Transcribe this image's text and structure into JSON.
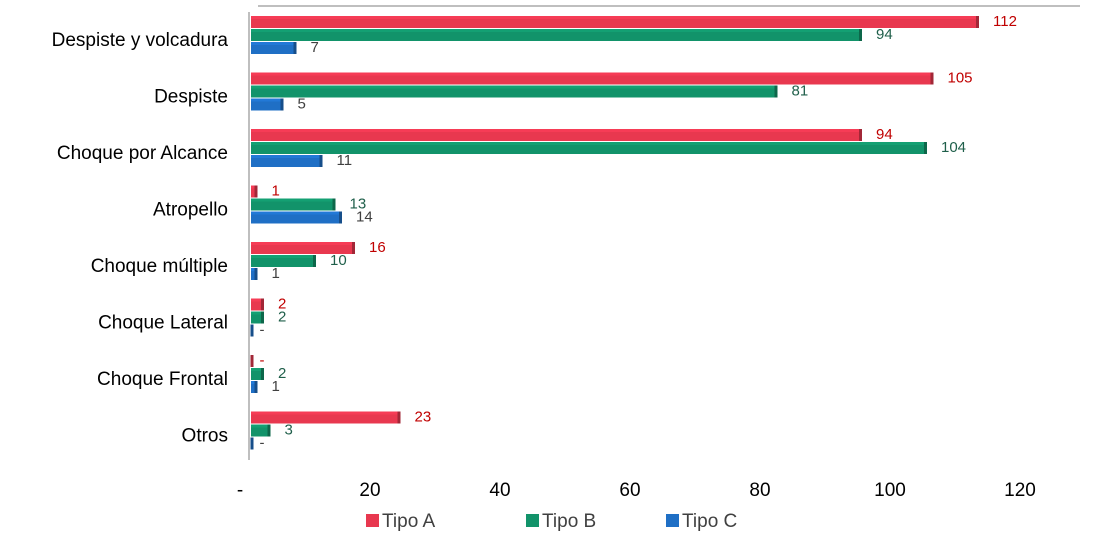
{
  "chart_data": {
    "type": "bar",
    "orientation": "horizontal",
    "categories": [
      "Despiste y volcadura",
      "Despiste",
      "Choque por Alcance",
      "Atropello",
      "Choque múltiple",
      "Choque Lateral",
      "Choque Frontal",
      "Otros"
    ],
    "series": [
      {
        "name": "Tipo A",
        "color": "#e8384f",
        "values": [
          112,
          105,
          94,
          1,
          16,
          2,
          0,
          23
        ],
        "labels": [
          "112",
          "105",
          "94",
          "1",
          "16",
          "2",
          "-",
          "23"
        ],
        "label_color": "#c00000"
      },
      {
        "name": "Tipo B",
        "color": "#12936a",
        "values": [
          94,
          81,
          104,
          13,
          10,
          2,
          2,
          3
        ],
        "labels": [
          "94",
          "81",
          "104",
          "13",
          "10",
          "2",
          "2",
          "3"
        ],
        "label_color": "#1f5f4a"
      },
      {
        "name": "Tipo C",
        "color": "#1f6fc5",
        "values": [
          7,
          5,
          11,
          14,
          1,
          0,
          1,
          0
        ],
        "labels": [
          "7",
          "5",
          "11",
          "14",
          "1",
          "-",
          "1",
          "-"
        ],
        "label_color": "#404040"
      }
    ],
    "xlim": [
      0,
      120
    ],
    "xticks": [
      0,
      20,
      40,
      60,
      80,
      100,
      120
    ],
    "xtick_labels": [
      "-",
      "20",
      "40",
      "60",
      "80",
      "100",
      "120"
    ],
    "grid": false,
    "legend_position": "bottom"
  }
}
